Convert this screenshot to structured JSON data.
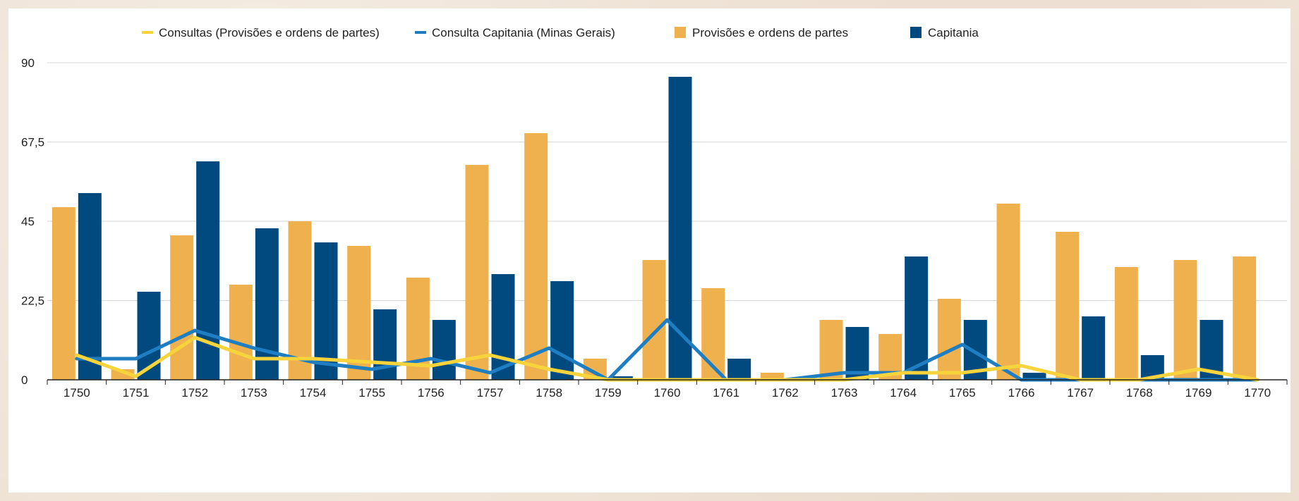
{
  "chart_data": {
    "type": "bar",
    "title": "",
    "xlabel": "",
    "ylabel": "",
    "categories": [
      "1750",
      "1751",
      "1752",
      "1753",
      "1754",
      "1755",
      "1756",
      "1757",
      "1758",
      "1759",
      "1760",
      "1761",
      "1762",
      "1763",
      "1764",
      "1765",
      "1766",
      "1767",
      "1768",
      "1769",
      "1770"
    ],
    "ylim": [
      0,
      90
    ],
    "yticks": [
      0,
      22.5,
      45,
      67.5,
      90
    ],
    "ytick_labels": [
      "0",
      "22,5",
      "45",
      "67,5",
      "90"
    ],
    "grid": true,
    "legend_position": "top",
    "series": [
      {
        "name": "Provisões e ordens de partes",
        "kind": "bar",
        "color": "#efb14e",
        "values": [
          49,
          3,
          41,
          27,
          45,
          38,
          29,
          61,
          70,
          6,
          34,
          26,
          2,
          17,
          13,
          23,
          50,
          42,
          32,
          34,
          35
        ]
      },
      {
        "name": "Capitania",
        "kind": "bar",
        "color": "#004a80",
        "values": [
          53,
          25,
          62,
          43,
          39,
          20,
          17,
          30,
          28,
          1,
          86,
          6,
          0,
          15,
          35,
          17,
          2,
          18,
          7,
          17,
          0
        ]
      },
      {
        "name": "Consultas (Provisões e ordens de partes)",
        "kind": "line",
        "color": "#f7d43b",
        "values": [
          7,
          1,
          12,
          6,
          6,
          5,
          4,
          7,
          3,
          0,
          0,
          0,
          0,
          0,
          2,
          2,
          4,
          0,
          0,
          3,
          0
        ]
      },
      {
        "name": "Consulta Capitania (Minas Gerais)",
        "kind": "line",
        "color": "#1f7ec2",
        "values": [
          6,
          6,
          14,
          9,
          5,
          3,
          6,
          2,
          9,
          0,
          17,
          0,
          0,
          2,
          2,
          10,
          0,
          0,
          0,
          0,
          0
        ]
      }
    ]
  },
  "legend": {
    "items": [
      {
        "label": "Consultas (Provisões e ordens de partes)",
        "marker": "line",
        "color": "#f7d43b"
      },
      {
        "label": "Consulta Capitania (Minas Gerais)",
        "marker": "line",
        "color": "#1f7ec2"
      },
      {
        "label": "Provisões e ordens de partes",
        "marker": "square",
        "color": "#efb14e"
      },
      {
        "label": "Capitania",
        "marker": "square",
        "color": "#004a80"
      }
    ]
  }
}
